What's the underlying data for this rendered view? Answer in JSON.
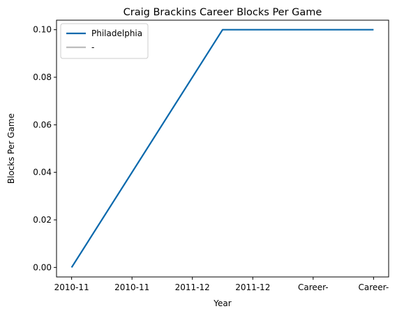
{
  "chart_data": {
    "type": "line",
    "title": "Craig Brackins Career Blocks Per Game",
    "xlabel": "Year",
    "ylabel": "Blocks Per Game",
    "categories": [
      "2010-11",
      "2010-11",
      "2011-12",
      "2011-12",
      "Career-",
      "Career-"
    ],
    "x_positions": [
      0,
      1,
      2,
      2.5,
      4,
      5
    ],
    "series": [
      {
        "name": "Philadelphia",
        "x": [
          0,
          2.5,
          5
        ],
        "values": [
          0.0,
          0.1,
          0.1
        ],
        "color": "#0868ac"
      },
      {
        "name": "-",
        "x": [],
        "values": [],
        "color": "#bdbdbd"
      }
    ],
    "ylim": [
      -0.004,
      0.104
    ],
    "xlim": [
      -0.25,
      5.25
    ],
    "yticks": [
      0.0,
      0.02,
      0.04,
      0.06,
      0.08,
      0.1
    ],
    "ytick_labels": [
      "0.00",
      "0.02",
      "0.04",
      "0.06",
      "0.08",
      "0.10"
    ],
    "xticks": [
      0,
      1,
      2,
      3,
      4,
      5
    ],
    "xtick_labels": [
      "2010-11",
      "2010-11",
      "2011-12",
      "2011-12",
      "Career-",
      "Career-"
    ],
    "grid": false,
    "legend_position": "upper-left"
  }
}
